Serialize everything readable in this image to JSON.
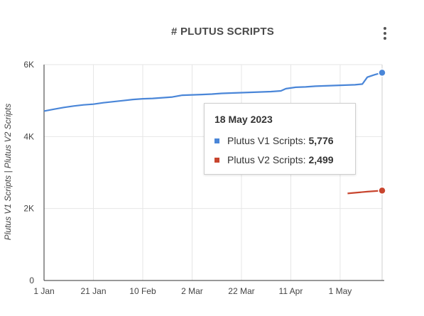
{
  "chart_data": {
    "type": "line",
    "title": "# PLUTUS SCRIPTS",
    "ylabel": "Plutus V1 Scripts | Plutus V2 Scripts",
    "ylim": [
      0,
      6000
    ],
    "y_ticks": [
      0,
      2000,
      4000,
      6000
    ],
    "y_tick_labels": [
      "0",
      "2K",
      "4K",
      "6K"
    ],
    "x_ticks": [
      "2023-01-01",
      "2023-01-21",
      "2023-02-10",
      "2023-03-02",
      "2023-03-22",
      "2023-04-11",
      "2023-05-01"
    ],
    "x_tick_labels": [
      "1 Jan",
      "21 Jan",
      "10 Feb",
      "2 Mar",
      "22 Mar",
      "11 Apr",
      "1 May"
    ],
    "xlim": [
      "2023-01-01",
      "2023-05-18"
    ],
    "grid": true,
    "series": [
      {
        "name": "Plutus V1 Scripts",
        "color": "#4a86d8",
        "points": [
          [
            "2023-01-01",
            4710
          ],
          [
            "2023-01-05",
            4760
          ],
          [
            "2023-01-09",
            4810
          ],
          [
            "2023-01-13",
            4850
          ],
          [
            "2023-01-17",
            4880
          ],
          [
            "2023-01-21",
            4900
          ],
          [
            "2023-01-25",
            4940
          ],
          [
            "2023-01-29",
            4970
          ],
          [
            "2023-02-02",
            5000
          ],
          [
            "2023-02-06",
            5030
          ],
          [
            "2023-02-10",
            5050
          ],
          [
            "2023-02-14",
            5060
          ],
          [
            "2023-02-18",
            5080
          ],
          [
            "2023-02-22",
            5100
          ],
          [
            "2023-02-26",
            5150
          ],
          [
            "2023-03-02",
            5160
          ],
          [
            "2023-03-06",
            5170
          ],
          [
            "2023-03-10",
            5180
          ],
          [
            "2023-03-14",
            5200
          ],
          [
            "2023-03-18",
            5210
          ],
          [
            "2023-03-22",
            5220
          ],
          [
            "2023-03-26",
            5230
          ],
          [
            "2023-03-30",
            5240
          ],
          [
            "2023-04-03",
            5250
          ],
          [
            "2023-04-07",
            5270
          ],
          [
            "2023-04-09",
            5330
          ],
          [
            "2023-04-13",
            5370
          ],
          [
            "2023-04-17",
            5380
          ],
          [
            "2023-04-21",
            5400
          ],
          [
            "2023-04-25",
            5410
          ],
          [
            "2023-04-29",
            5420
          ],
          [
            "2023-05-03",
            5430
          ],
          [
            "2023-05-07",
            5440
          ],
          [
            "2023-05-10",
            5460
          ],
          [
            "2023-05-12",
            5650
          ],
          [
            "2023-05-15",
            5720
          ],
          [
            "2023-05-18",
            5776
          ]
        ]
      },
      {
        "name": "Plutus V2 Scripts",
        "color": "#c8452e",
        "points": [
          [
            "2023-05-04",
            2420
          ],
          [
            "2023-05-08",
            2445
          ],
          [
            "2023-05-12",
            2470
          ],
          [
            "2023-05-15",
            2485
          ],
          [
            "2023-05-18",
            2499
          ]
        ]
      }
    ],
    "tooltip": {
      "date": "18 May 2023",
      "rows": [
        {
          "label": "Plutus V1 Scripts:",
          "value": "5,776",
          "color": "#4a86d8"
        },
        {
          "label": "Plutus V2 Scripts:",
          "value": "2,499",
          "color": "#c8452e"
        }
      ]
    }
  }
}
